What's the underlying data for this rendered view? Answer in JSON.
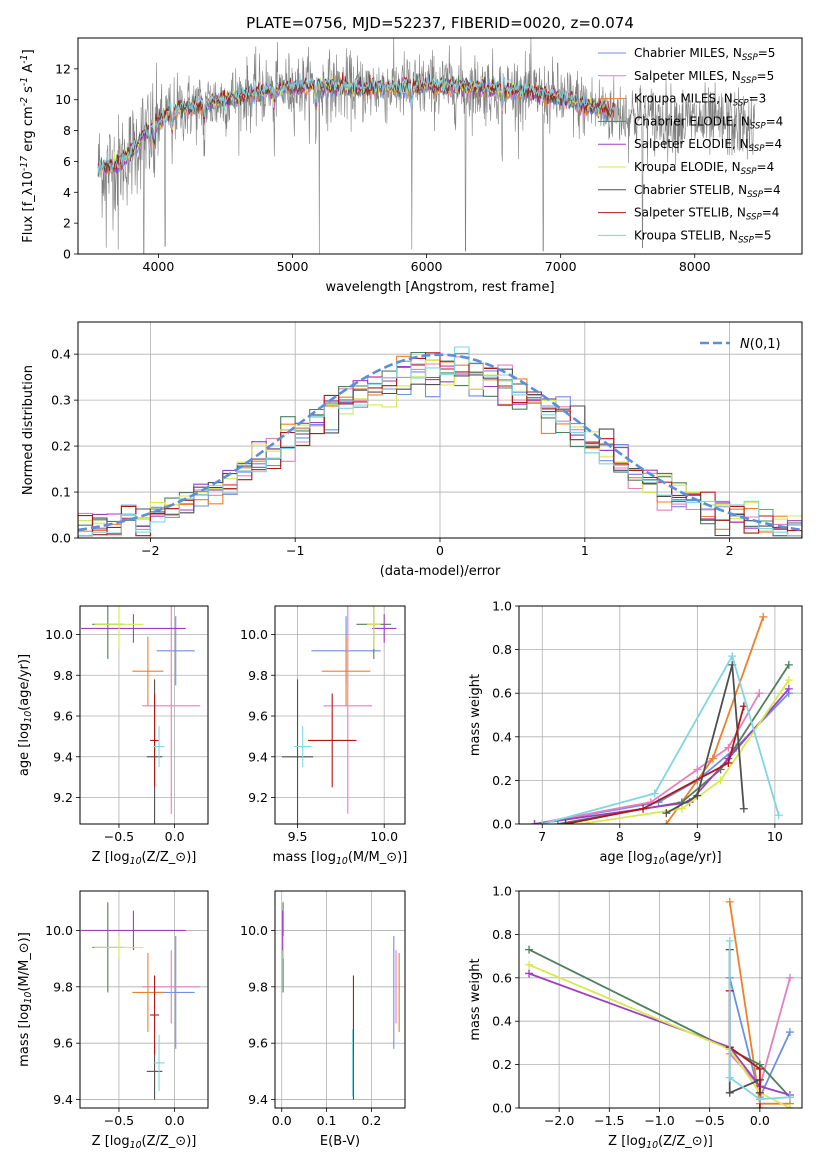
{
  "colors": {
    "axes": "#000000",
    "grid": "#b0b0b0",
    "data_spectrum": "#808080",
    "ncurve": "#5b8fd9",
    "series": [
      "#6f8fe6",
      "#e67fbf",
      "#f07f2a",
      "#4f7f5f",
      "#9e3fc0",
      "#d6ea4f",
      "#4f4f4f",
      "#b01818",
      "#7fd6e0"
    ]
  },
  "series_names": [
    "Chabrier MILES, N$_{SSP}$=5",
    "Salpeter MILES, N$_{SSP}$=5",
    "Kroupa MILES, N$_{SSP}$=3",
    "Chabrier ELODIE, N$_{SSP}$=4",
    "Salpeter ELODIE, N$_{SSP}$=4",
    "Kroupa ELODIE, N$_{SSP}$=4",
    "Chabrier STELIB, N$_{SSP}$=4",
    "Salpeter STELIB, N$_{SSP}$=4",
    "Kroupa STELIB, N$_{SSP}$=5"
  ],
  "chart_data": [
    {
      "id": "spectrum",
      "type": "line",
      "title": "PLATE=0756, MJD=52237, FIBERID=0020, z=0.074",
      "xlabel": "wavelength [Angstrom, rest frame]",
      "ylabel": "Flux [f$_\\lambda$10$^{-17}$ erg cm$^{-2}$ s$^{-1}$ A$^{-1}$]",
      "xlim": [
        3400,
        8800
      ],
      "ylim": [
        0,
        14
      ],
      "xticks": [
        4000,
        5000,
        6000,
        7000,
        8000
      ],
      "yticks": [
        0,
        2,
        4,
        6,
        8,
        10,
        12
      ],
      "grid": false,
      "legend": "right",
      "data_range": [
        3550,
        8450
      ],
      "model_wavelength_range": [
        3550,
        7400
      ],
      "anchors": [
        [
          3550,
          5.6
        ],
        [
          3700,
          5.8
        ],
        [
          3800,
          6.6
        ],
        [
          3900,
          7.9
        ],
        [
          4000,
          8.5
        ],
        [
          4100,
          9.3
        ],
        [
          4300,
          9.6
        ],
        [
          4500,
          10.0
        ],
        [
          4800,
          10.6
        ],
        [
          5000,
          10.8
        ],
        [
          5200,
          10.9
        ],
        [
          5500,
          10.7
        ],
        [
          5800,
          10.8
        ],
        [
          6000,
          10.9
        ],
        [
          6300,
          10.8
        ],
        [
          6500,
          10.7
        ],
        [
          6800,
          10.5
        ],
        [
          7000,
          10.1
        ],
        [
          7200,
          9.6
        ],
        [
          7400,
          9.2
        ],
        [
          7700,
          8.7
        ],
        [
          8000,
          8.6
        ],
        [
          8200,
          8.5
        ],
        [
          8450,
          8.2
        ]
      ]
    },
    {
      "id": "residuals",
      "type": "bar",
      "xlabel": "(data-model)/error",
      "ylabel": "Normed distribution",
      "xlim": [
        -2.5,
        2.5
      ],
      "ylim": [
        0,
        0.47
      ],
      "xticks": [
        -2,
        -1,
        0,
        1,
        2
      ],
      "yticks": [
        0.0,
        0.1,
        0.2,
        0.3,
        0.4
      ],
      "grid": true,
      "legend": "top-right",
      "legend_label": "$\\mathcal{N}(0,1)$",
      "bin_width": 0.1,
      "bins": 50
    },
    {
      "id": "age_vs_Z",
      "type": "scatter",
      "xlabel": "Z [log$_{10}$(Z/Z$_\\odot$)]",
      "ylabel": "age  [log$_{10}$(age/yr)]",
      "xlim": [
        -0.85,
        0.3
      ],
      "ylim": [
        9.07,
        10.14
      ],
      "xticks": [
        -0.5,
        0.0
      ],
      "yticks": [
        9.2,
        9.4,
        9.6,
        9.8,
        10.0
      ],
      "grid": true,
      "points": [
        {
          "s": 0,
          "x": 0.01,
          "y": 9.92,
          "xerr": 0.17,
          "yerr": 0.17
        },
        {
          "s": 1,
          "x": -0.03,
          "y": 9.65,
          "xerr": 0.26,
          "yerr": 0.53
        },
        {
          "s": 2,
          "x": -0.24,
          "y": 9.82,
          "xerr": 0.14,
          "yerr": 0.17
        },
        {
          "s": 3,
          "x": -0.6,
          "y": 10.05,
          "xerr": 0.14,
          "yerr": 0.17
        },
        {
          "s": 4,
          "x": -0.37,
          "y": 10.03,
          "xerr": 0.47,
          "yerr": 0.07
        },
        {
          "s": 5,
          "x": -0.5,
          "y": 10.05,
          "xerr": 0.22,
          "yerr": 0.12
        },
        {
          "s": 6,
          "x": -0.18,
          "y": 9.4,
          "xerr": 0.07,
          "yerr": 0.38
        },
        {
          "s": 7,
          "x": -0.18,
          "y": 9.48,
          "xerr": 0.04,
          "yerr": 0.23
        },
        {
          "s": 8,
          "x": -0.14,
          "y": 9.45,
          "xerr": 0.05,
          "yerr": 0.1
        }
      ]
    },
    {
      "id": "age_vs_mass",
      "type": "scatter",
      "xlabel": "mass [log$_{10}$(M/M$_\\odot$)]",
      "ylabel": "",
      "xlim": [
        9.37,
        10.12
      ],
      "ylim": [
        9.07,
        10.14
      ],
      "xticks": [
        9.5,
        10.0
      ],
      "yticks": [
        9.2,
        9.4,
        9.6,
        9.8,
        10.0
      ],
      "grid": true,
      "points": [
        {
          "s": 0,
          "x": 9.78,
          "y": 9.92,
          "xerr": 0.2,
          "yerr": 0.17
        },
        {
          "s": 1,
          "x": 9.79,
          "y": 9.65,
          "xerr": 0.14,
          "yerr": 0.53
        },
        {
          "s": 2,
          "x": 9.78,
          "y": 9.82,
          "xerr": 0.14,
          "yerr": 0.17
        },
        {
          "s": 3,
          "x": 9.94,
          "y": 10.05,
          "xerr": 0.1,
          "yerr": 0.17
        },
        {
          "s": 4,
          "x": 10.0,
          "y": 10.03,
          "xerr": 0.07,
          "yerr": 0.07
        },
        {
          "s": 5,
          "x": 9.94,
          "y": 10.05,
          "xerr": 0.04,
          "yerr": 0.12
        },
        {
          "s": 6,
          "x": 9.5,
          "y": 9.4,
          "xerr": 0.09,
          "yerr": 0.38
        },
        {
          "s": 7,
          "x": 9.7,
          "y": 9.48,
          "xerr": 0.14,
          "yerr": 0.23
        },
        {
          "s": 8,
          "x": 9.53,
          "y": 9.45,
          "xerr": 0.05,
          "yerr": 0.1
        }
      ]
    },
    {
      "id": "massweight_vs_age",
      "type": "line",
      "xlabel": "age  [log$_{10}$(age/yr)]",
      "ylabel": "mass weight",
      "xlim": [
        6.7,
        10.35
      ],
      "ylim": [
        0,
        1.0
      ],
      "xticks": [
        7,
        8,
        9,
        10
      ],
      "yticks": [
        0.0,
        0.2,
        0.4,
        0.6,
        0.8,
        1.0
      ],
      "grid": true,
      "series": [
        {
          "s": 0,
          "x": [
            6.9,
            8.5,
            9.0,
            9.5,
            10.18
          ],
          "y": [
            0.0,
            0.1,
            0.2,
            0.35,
            0.6
          ]
        },
        {
          "s": 1,
          "x": [
            6.9,
            8.4,
            9.0,
            9.4,
            9.8
          ],
          "y": [
            0.0,
            0.1,
            0.25,
            0.35,
            0.6
          ]
        },
        {
          "s": 2,
          "x": [
            8.6,
            9.2,
            9.85
          ],
          "y": [
            0.0,
            0.3,
            0.95
          ]
        },
        {
          "s": 3,
          "x": [
            7.2,
            8.8,
            9.3,
            10.18
          ],
          "y": [
            0.0,
            0.1,
            0.25,
            0.73
          ]
        },
        {
          "s": 4,
          "x": [
            6.9,
            8.9,
            9.4,
            10.18
          ],
          "y": [
            0.0,
            0.1,
            0.3,
            0.62
          ]
        },
        {
          "s": 5,
          "x": [
            7.5,
            8.8,
            9.3,
            10.18
          ],
          "y": [
            0.0,
            0.07,
            0.2,
            0.66
          ]
        },
        {
          "s": 6,
          "x": [
            8.6,
            9.0,
            9.45,
            9.6
          ],
          "y": [
            0.05,
            0.13,
            0.73,
            0.07
          ]
        },
        {
          "s": 7,
          "x": [
            7.3,
            8.3,
            9.4,
            9.6
          ],
          "y": [
            0.0,
            0.07,
            0.28,
            0.54
          ]
        },
        {
          "s": 8,
          "x": [
            7.0,
            8.45,
            9.45,
            10.05
          ],
          "y": [
            0.0,
            0.14,
            0.77,
            0.04
          ]
        }
      ]
    },
    {
      "id": "mass_vs_Z",
      "type": "scatter",
      "xlabel": "Z [log$_{10}$(Z/Z$_\\odot$)]",
      "ylabel": "mass [log$_{10}$(M/M$_\\odot$)]",
      "xlim": [
        -0.85,
        0.3
      ],
      "ylim": [
        9.37,
        10.14
      ],
      "xticks": [
        -0.5,
        0.0
      ],
      "yticks": [
        9.4,
        9.6,
        9.8,
        10.0
      ],
      "grid": true,
      "points": [
        {
          "s": 0,
          "x": 0.01,
          "y": 9.78,
          "xerr": 0.17,
          "yerr": 0.2
        },
        {
          "s": 1,
          "x": -0.03,
          "y": 9.8,
          "xerr": 0.26,
          "yerr": 0.13
        },
        {
          "s": 2,
          "x": -0.24,
          "y": 9.78,
          "xerr": 0.14,
          "yerr": 0.14
        },
        {
          "s": 3,
          "x": -0.6,
          "y": 9.94,
          "xerr": 0.14,
          "yerr": 0.16
        },
        {
          "s": 4,
          "x": -0.37,
          "y": 10.0,
          "xerr": 0.47,
          "yerr": 0.07
        },
        {
          "s": 5,
          "x": -0.5,
          "y": 9.94,
          "xerr": 0.22,
          "yerr": 0.04
        },
        {
          "s": 6,
          "x": -0.18,
          "y": 9.5,
          "xerr": 0.07,
          "yerr": 0.1
        },
        {
          "s": 7,
          "x": -0.18,
          "y": 9.7,
          "xerr": 0.04,
          "yerr": 0.14
        },
        {
          "s": 8,
          "x": -0.14,
          "y": 9.53,
          "xerr": 0.05,
          "yerr": 0.1
        }
      ]
    },
    {
      "id": "mass_vs_ebv",
      "type": "scatter",
      "xlabel": "E(B-V)",
      "ylabel": "",
      "xlim": [
        -0.015,
        0.275
      ],
      "ylim": [
        9.37,
        10.14
      ],
      "xticks": [
        0.0,
        0.1,
        0.2
      ],
      "yticks": [
        9.4,
        9.6,
        9.8,
        10.0
      ],
      "grid": true,
      "points": [
        {
          "s": 0,
          "x": 0.25,
          "y": 9.78,
          "xerr": 0.0,
          "yerr": 0.2
        },
        {
          "s": 1,
          "x": 0.255,
          "y": 9.8,
          "xerr": 0.0,
          "yerr": 0.13
        },
        {
          "s": 2,
          "x": 0.262,
          "y": 9.78,
          "xerr": 0.0,
          "yerr": 0.14
        },
        {
          "s": 3,
          "x": 0.003,
          "y": 9.94,
          "xerr": 0.0,
          "yerr": 0.16
        },
        {
          "s": 4,
          "x": 0.002,
          "y": 10.0,
          "xerr": 0.0,
          "yerr": 0.07
        },
        {
          "s": 5,
          "x": 0.004,
          "y": 9.94,
          "xerr": 0.0,
          "yerr": 0.04
        },
        {
          "s": 6,
          "x": 0.16,
          "y": 9.5,
          "xerr": 0.0,
          "yerr": 0.1
        },
        {
          "s": 7,
          "x": 0.16,
          "y": 9.7,
          "xerr": 0.0,
          "yerr": 0.14
        },
        {
          "s": 8,
          "x": 0.158,
          "y": 9.53,
          "xerr": 0.0,
          "yerr": 0.12
        }
      ]
    },
    {
      "id": "massweight_vs_Z",
      "type": "line",
      "xlabel": "Z [log$_{10}$(Z/Z$_\\odot$)]",
      "ylabel": "mass weight",
      "xlim": [
        -2.4,
        0.42
      ],
      "ylim": [
        0,
        1.0
      ],
      "xticks": [
        -2.0,
        -1.5,
        -1.0,
        -0.5,
        0.0
      ],
      "yticks": [
        0.0,
        0.2,
        0.4,
        0.6,
        0.8,
        1.0
      ],
      "grid": true,
      "series": [
        {
          "s": 0,
          "x": [
            -0.3,
            0.0,
            0.3
          ],
          "y": [
            0.6,
            0.05,
            0.35
          ]
        },
        {
          "s": 1,
          "x": [
            -0.3,
            0.0,
            0.3
          ],
          "y": [
            0.25,
            0.1,
            0.6
          ]
        },
        {
          "s": 2,
          "x": [
            -0.3,
            0.0,
            0.3
          ],
          "y": [
            0.95,
            0.02,
            0.02
          ]
        },
        {
          "s": 3,
          "x": [
            -2.3,
            -0.3,
            0.0,
            0.3
          ],
          "y": [
            0.73,
            0.27,
            0.2,
            0.05
          ]
        },
        {
          "s": 4,
          "x": [
            -2.3,
            -0.3,
            0.0,
            0.3
          ],
          "y": [
            0.62,
            0.28,
            0.1,
            0.06
          ]
        },
        {
          "s": 5,
          "x": [
            -2.3,
            -0.3,
            0.0,
            0.3
          ],
          "y": [
            0.66,
            0.27,
            0.07,
            0.0
          ]
        },
        {
          "s": 6,
          "x": [
            -0.3,
            -0.3,
            0.0,
            0.0
          ],
          "y": [
            0.73,
            0.07,
            0.13,
            0.07
          ]
        },
        {
          "s": 7,
          "x": [
            -0.3,
            -0.3,
            0.0,
            0.0
          ],
          "y": [
            0.54,
            0.28,
            0.18,
            0.0
          ]
        },
        {
          "s": 8,
          "x": [
            -0.3,
            -0.3,
            0.0,
            0.3
          ],
          "y": [
            0.77,
            0.14,
            0.04,
            0.05
          ]
        }
      ]
    }
  ]
}
